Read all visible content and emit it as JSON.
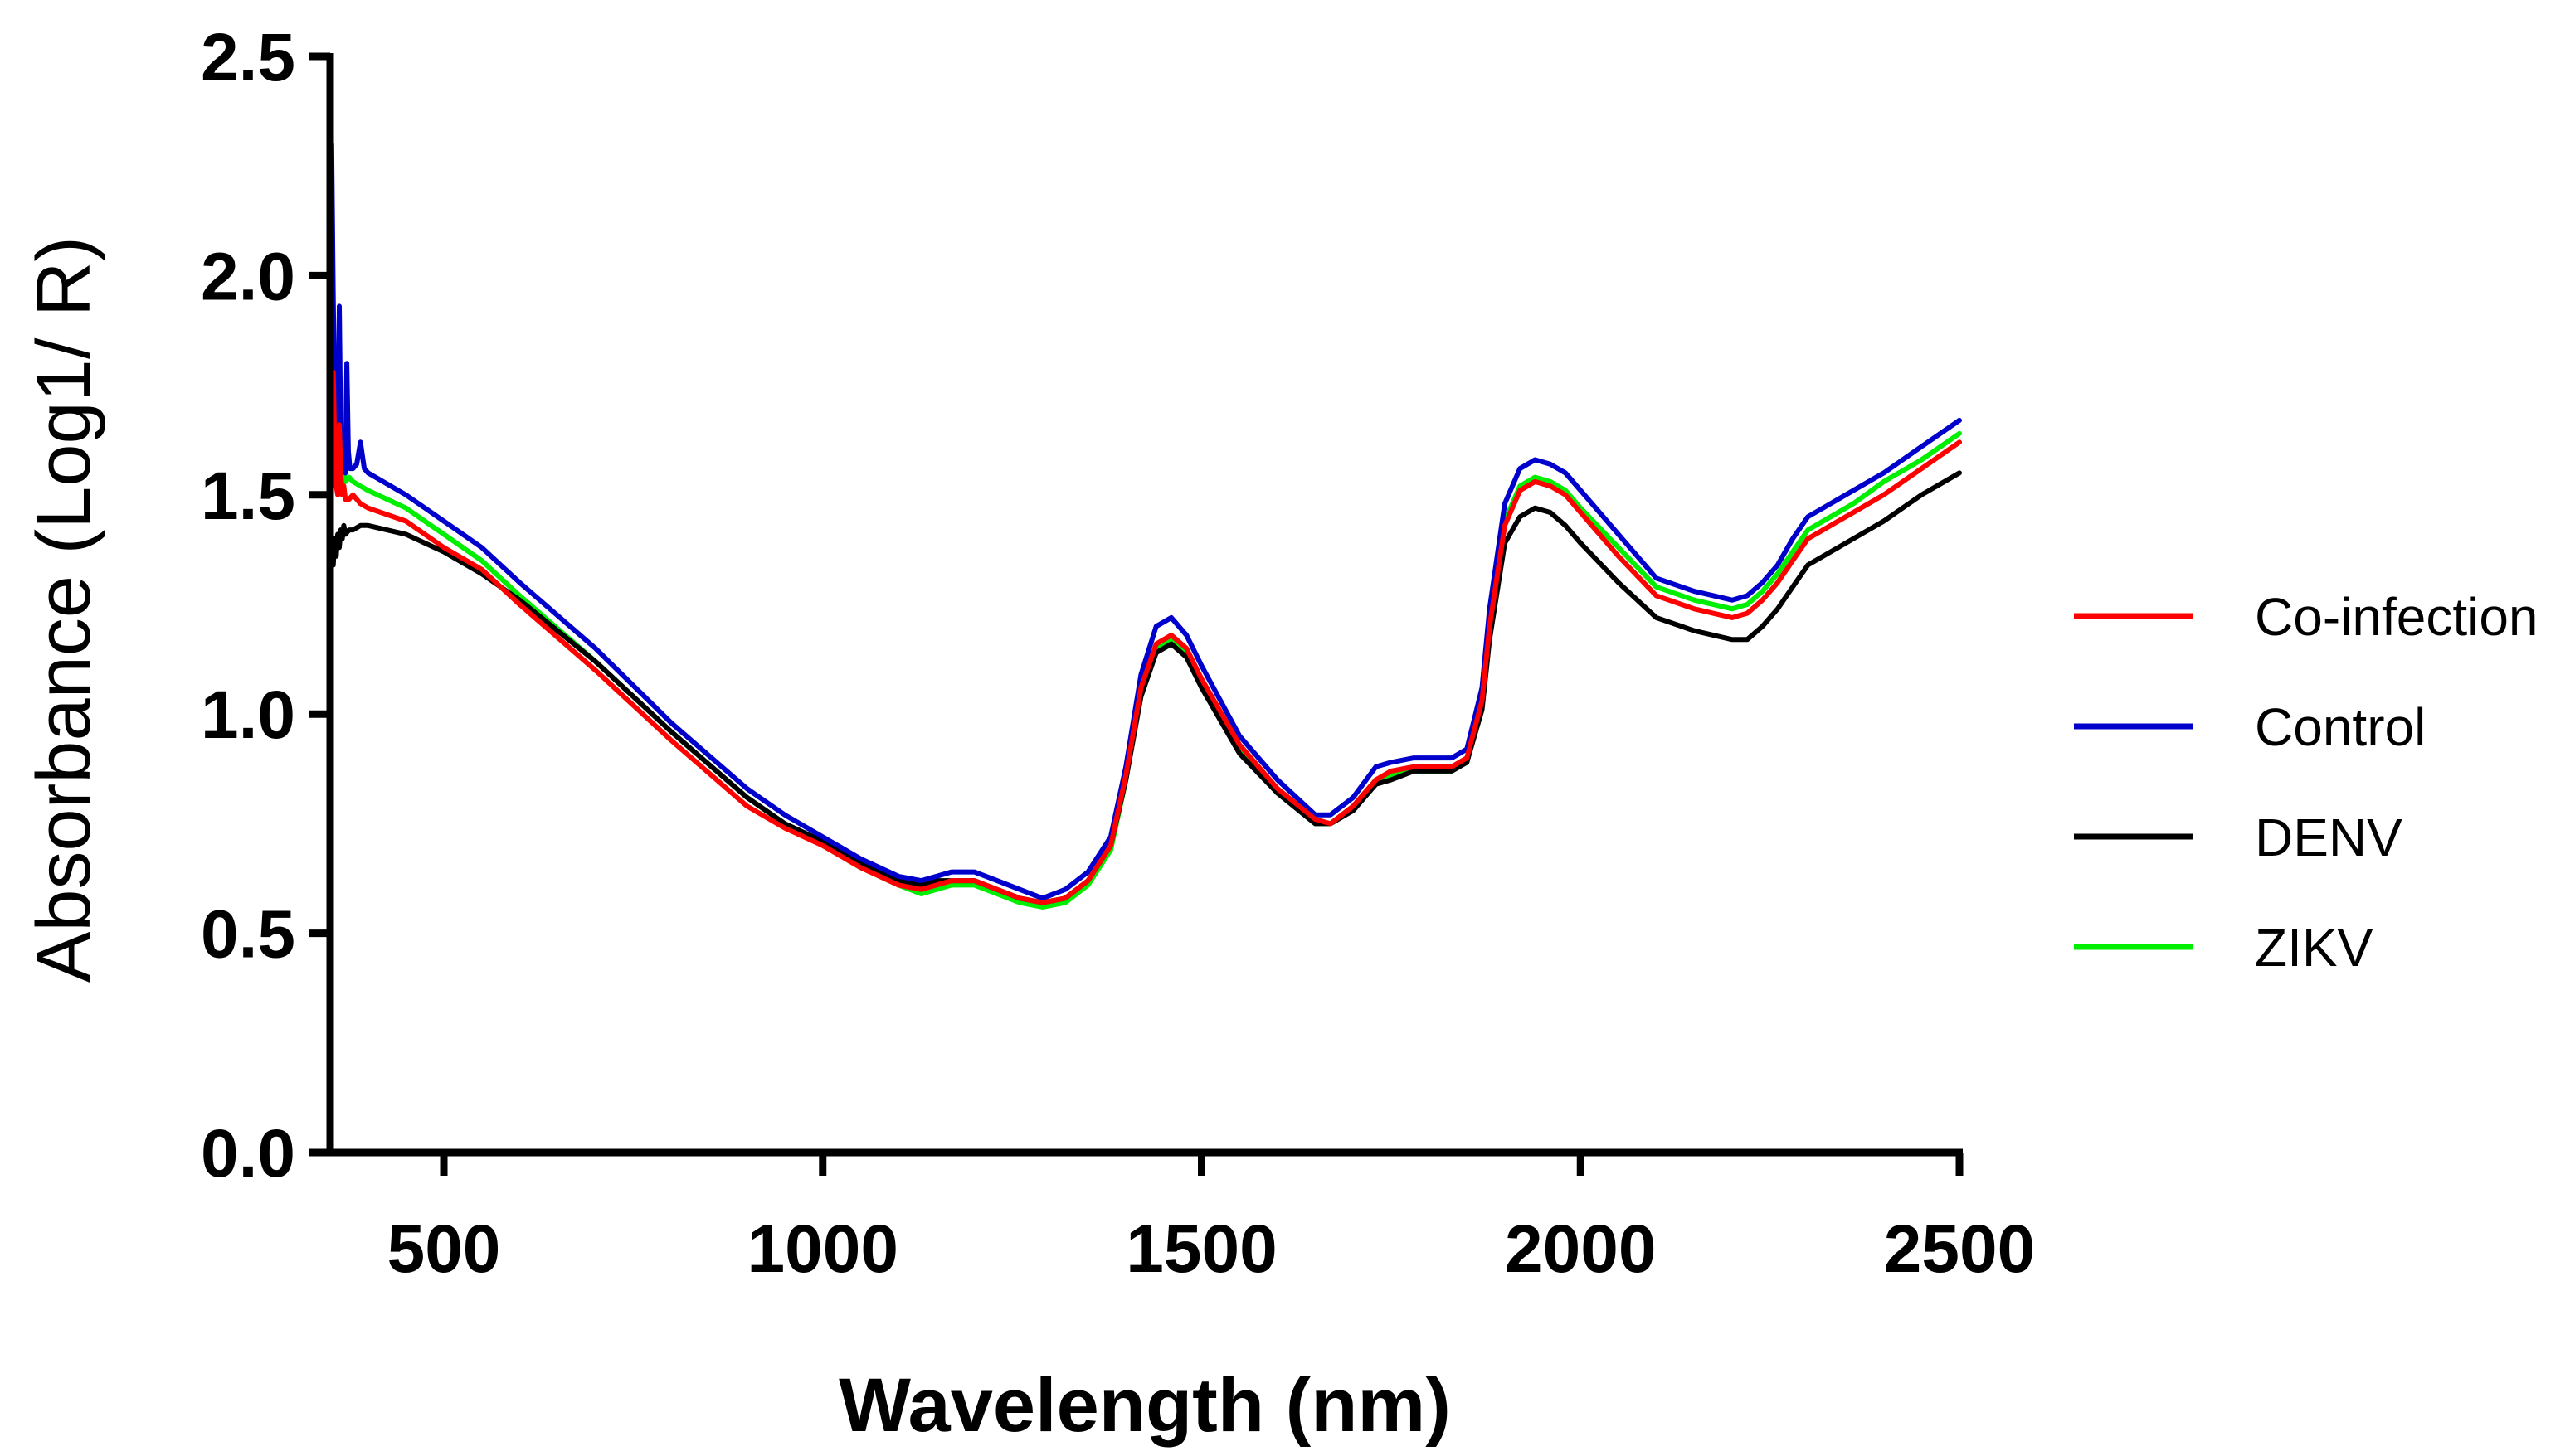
{
  "chart_data": {
    "type": "line",
    "title": "",
    "xlabel": "Wavelength (nm)",
    "ylabel": "Absorbance (Log1/ R)",
    "xlim": [
      350,
      2500
    ],
    "ylim": [
      0,
      2.5
    ],
    "x_ticks": [
      {
        "value": 500,
        "label": "500"
      },
      {
        "value": 1000,
        "label": "1000"
      },
      {
        "value": 1500,
        "label": "1500"
      },
      {
        "value": 2000,
        "label": "2000"
      },
      {
        "value": 2500,
        "label": "2500"
      }
    ],
    "y_ticks": [
      {
        "value": 0.0,
        "label": "0.0"
      },
      {
        "value": 0.5,
        "label": "0.5"
      },
      {
        "value": 1.0,
        "label": "1.0"
      },
      {
        "value": 1.5,
        "label": "1.5"
      },
      {
        "value": 2.0,
        "label": "2.0"
      },
      {
        "value": 2.5,
        "label": "2.5"
      }
    ],
    "grid": false,
    "legend_position": "right",
    "series": [
      {
        "name": "Co-infection",
        "color": "#ff0000",
        "x": [
          350,
          352,
          354,
          356,
          358,
          360,
          362,
          364,
          366,
          368,
          370,
          375,
          380,
          390,
          400,
          450,
          500,
          550,
          600,
          700,
          800,
          900,
          950,
          1000,
          1050,
          1100,
          1130,
          1150,
          1170,
          1200,
          1230,
          1260,
          1290,
          1320,
          1350,
          1380,
          1400,
          1420,
          1440,
          1460,
          1480,
          1500,
          1550,
          1600,
          1650,
          1670,
          1700,
          1730,
          1750,
          1780,
          1800,
          1830,
          1850,
          1870,
          1880,
          1900,
          1920,
          1940,
          1960,
          1980,
          2000,
          2050,
          2100,
          2150,
          2200,
          2220,
          2240,
          2260,
          2280,
          2300,
          2320,
          2340,
          2360,
          2400,
          2450,
          2500
        ],
        "y": [
          1.52,
          1.62,
          1.78,
          1.6,
          1.52,
          1.5,
          1.66,
          1.55,
          1.5,
          1.52,
          1.49,
          1.49,
          1.5,
          1.48,
          1.47,
          1.44,
          1.38,
          1.33,
          1.25,
          1.1,
          0.94,
          0.79,
          0.74,
          0.7,
          0.65,
          0.61,
          0.6,
          0.61,
          0.62,
          0.62,
          0.6,
          0.58,
          0.57,
          0.58,
          0.62,
          0.7,
          0.86,
          1.06,
          1.16,
          1.18,
          1.15,
          1.08,
          0.93,
          0.83,
          0.76,
          0.75,
          0.79,
          0.85,
          0.87,
          0.88,
          0.88,
          0.88,
          0.9,
          1.03,
          1.2,
          1.43,
          1.51,
          1.53,
          1.52,
          1.5,
          1.46,
          1.36,
          1.27,
          1.24,
          1.22,
          1.23,
          1.26,
          1.3,
          1.35,
          1.4,
          1.42,
          1.44,
          1.46,
          1.5,
          1.56,
          1.62
        ]
      },
      {
        "name": "Control",
        "color": "#0000cc",
        "x": [
          350,
          352,
          354,
          356,
          358,
          360,
          362,
          364,
          366,
          368,
          370,
          372,
          374,
          376,
          380,
          385,
          390,
          395,
          400,
          450,
          500,
          550,
          600,
          700,
          800,
          900,
          950,
          1000,
          1050,
          1100,
          1130,
          1150,
          1170,
          1200,
          1230,
          1260,
          1290,
          1320,
          1350,
          1380,
          1400,
          1420,
          1440,
          1460,
          1480,
          1500,
          1550,
          1600,
          1650,
          1670,
          1700,
          1730,
          1750,
          1780,
          1800,
          1830,
          1850,
          1870,
          1880,
          1900,
          1920,
          1940,
          1960,
          1980,
          2000,
          2050,
          2100,
          2150,
          2200,
          2220,
          2240,
          2260,
          2280,
          2300,
          2320,
          2340,
          2360,
          2400,
          2450,
          2500
        ],
        "y": [
          1.6,
          2.3,
          1.95,
          1.7,
          1.6,
          1.58,
          1.93,
          1.62,
          1.56,
          1.58,
          1.55,
          1.8,
          1.6,
          1.56,
          1.56,
          1.57,
          1.62,
          1.56,
          1.55,
          1.5,
          1.44,
          1.38,
          1.3,
          1.15,
          0.98,
          0.83,
          0.77,
          0.72,
          0.67,
          0.63,
          0.62,
          0.63,
          0.64,
          0.64,
          0.62,
          0.6,
          0.58,
          0.6,
          0.64,
          0.72,
          0.88,
          1.09,
          1.2,
          1.22,
          1.18,
          1.11,
          0.95,
          0.85,
          0.77,
          0.77,
          0.81,
          0.88,
          0.89,
          0.9,
          0.9,
          0.9,
          0.92,
          1.06,
          1.24,
          1.48,
          1.56,
          1.58,
          1.57,
          1.55,
          1.51,
          1.41,
          1.31,
          1.28,
          1.26,
          1.27,
          1.3,
          1.34,
          1.4,
          1.45,
          1.47,
          1.49,
          1.51,
          1.55,
          1.61,
          1.67
        ]
      },
      {
        "name": "DENV",
        "color": "#000000",
        "x": [
          350,
          352,
          354,
          356,
          358,
          360,
          362,
          364,
          366,
          368,
          370,
          375,
          380,
          390,
          400,
          450,
          500,
          550,
          600,
          700,
          800,
          900,
          950,
          1000,
          1050,
          1100,
          1130,
          1150,
          1170,
          1200,
          1230,
          1260,
          1290,
          1320,
          1350,
          1380,
          1400,
          1420,
          1440,
          1460,
          1480,
          1500,
          1550,
          1600,
          1650,
          1670,
          1700,
          1730,
          1750,
          1780,
          1800,
          1830,
          1850,
          1870,
          1880,
          1900,
          1920,
          1940,
          1960,
          1980,
          2000,
          2050,
          2100,
          2150,
          2200,
          2220,
          2240,
          2260,
          2280,
          2300,
          2320,
          2340,
          2360,
          2400,
          2450,
          2500
        ],
        "y": [
          1.32,
          1.38,
          1.34,
          1.4,
          1.36,
          1.41,
          1.38,
          1.42,
          1.4,
          1.43,
          1.41,
          1.42,
          1.42,
          1.43,
          1.43,
          1.41,
          1.37,
          1.32,
          1.26,
          1.12,
          0.96,
          0.81,
          0.75,
          0.71,
          0.66,
          0.62,
          0.61,
          0.62,
          0.62,
          0.62,
          0.6,
          0.58,
          0.57,
          0.58,
          0.62,
          0.7,
          0.85,
          1.04,
          1.14,
          1.16,
          1.13,
          1.06,
          0.91,
          0.82,
          0.75,
          0.75,
          0.78,
          0.84,
          0.85,
          0.87,
          0.87,
          0.87,
          0.89,
          1.01,
          1.17,
          1.39,
          1.45,
          1.47,
          1.46,
          1.43,
          1.39,
          1.3,
          1.22,
          1.19,
          1.17,
          1.17,
          1.2,
          1.24,
          1.29,
          1.34,
          1.36,
          1.38,
          1.4,
          1.44,
          1.5,
          1.55
        ]
      },
      {
        "name": "ZIKV",
        "color": "#00ee00",
        "x": [
          350,
          352,
          354,
          356,
          358,
          360,
          362,
          364,
          366,
          368,
          370,
          375,
          380,
          390,
          400,
          450,
          500,
          550,
          600,
          700,
          800,
          900,
          950,
          1000,
          1050,
          1100,
          1130,
          1150,
          1170,
          1200,
          1230,
          1260,
          1290,
          1320,
          1350,
          1380,
          1400,
          1420,
          1440,
          1460,
          1480,
          1500,
          1550,
          1600,
          1650,
          1670,
          1700,
          1730,
          1750,
          1780,
          1800,
          1830,
          1850,
          1870,
          1880,
          1900,
          1920,
          1940,
          1960,
          1980,
          2000,
          2050,
          2100,
          2150,
          2200,
          2220,
          2240,
          2260,
          2280,
          2300,
          2320,
          2340,
          2360,
          2400,
          2450,
          2500
        ],
        "y": [
          1.56,
          2.22,
          1.85,
          1.65,
          1.56,
          1.55,
          1.7,
          1.58,
          1.54,
          1.56,
          1.53,
          1.54,
          1.53,
          1.52,
          1.51,
          1.47,
          1.41,
          1.35,
          1.27,
          1.12,
          0.96,
          0.81,
          0.75,
          0.7,
          0.65,
          0.61,
          0.59,
          0.6,
          0.61,
          0.61,
          0.59,
          0.57,
          0.56,
          0.57,
          0.61,
          0.69,
          0.85,
          1.05,
          1.15,
          1.17,
          1.14,
          1.07,
          0.92,
          0.82,
          0.75,
          0.75,
          0.79,
          0.85,
          0.86,
          0.87,
          0.87,
          0.87,
          0.89,
          1.03,
          1.2,
          1.44,
          1.52,
          1.54,
          1.53,
          1.51,
          1.47,
          1.38,
          1.29,
          1.26,
          1.24,
          1.25,
          1.28,
          1.32,
          1.37,
          1.42,
          1.44,
          1.46,
          1.48,
          1.53,
          1.58,
          1.64
        ]
      }
    ]
  }
}
